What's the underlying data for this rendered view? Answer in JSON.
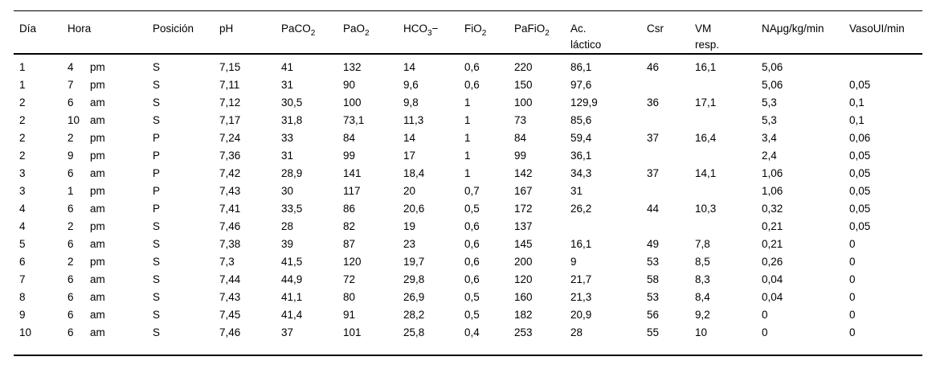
{
  "page": {
    "background_color": "#ffffff",
    "text_color": "#000000",
    "description": "Tabla de evolución gasométrica y hemodinámica"
  },
  "chart_data": {
    "type": "table",
    "columns": [
      {
        "id": "dia",
        "label": "Día"
      },
      {
        "id": "hora",
        "label": "Hora",
        "span": 2
      },
      {
        "id": "posicion",
        "label": "Posición"
      },
      {
        "id": "ph",
        "label": "pH"
      },
      {
        "id": "paco2",
        "label": "PaCO",
        "sub": "2"
      },
      {
        "id": "pao2",
        "label": "PaO",
        "sub": "2"
      },
      {
        "id": "hco3",
        "label": "HCO",
        "sub": "3",
        "after": "−"
      },
      {
        "id": "fio2",
        "label": "FiO",
        "sub": "2"
      },
      {
        "id": "pafio2",
        "label": "PaFiO",
        "sub": "2"
      },
      {
        "id": "ac_lactico",
        "label": "Ac.",
        "line2": "láctico"
      },
      {
        "id": "csr",
        "label": "Csr"
      },
      {
        "id": "vm_resp",
        "label": "VM",
        "line2": "resp."
      },
      {
        "id": "na",
        "label": "NAμg/kg/min"
      },
      {
        "id": "vaso",
        "label": "VasoUI/min"
      }
    ],
    "sub_columns": [
      "dia",
      "hora",
      "hora-ampm",
      "posicion",
      "ph",
      "paco2",
      "pao2",
      "hco3",
      "fio2",
      "pafio2",
      "ac_lactico",
      "csr",
      "vm_resp",
      "na",
      "vaso"
    ],
    "rows": [
      [
        "1",
        "4",
        "pm",
        "S",
        "7,15",
        "41",
        "132",
        "14",
        "0,6",
        "220",
        "86,1",
        "46",
        "16,1",
        "5,06",
        ""
      ],
      [
        "1",
        "7",
        "pm",
        "S",
        "7,11",
        "31",
        "90",
        "9,6",
        "0,6",
        "150",
        "97,6",
        "",
        "",
        "5,06",
        "0,05"
      ],
      [
        "2",
        "6",
        "am",
        "S",
        "7,12",
        "30,5",
        "100",
        "9,8",
        "1",
        "100",
        "129,9",
        "36",
        "17,1",
        "5,3",
        "0,1"
      ],
      [
        "2",
        "10",
        "am",
        "S",
        "7,17",
        "31,8",
        "73,1",
        "11,3",
        "1",
        "73",
        "85,6",
        "",
        "",
        "5,3",
        "0,1"
      ],
      [
        "2",
        "2",
        "pm",
        "P",
        "7,24",
        "33",
        "84",
        "14",
        "1",
        "84",
        "59,4",
        "37",
        "16,4",
        "3,4",
        "0,06"
      ],
      [
        "2",
        "9",
        "pm",
        "P",
        "7,36",
        "31",
        "99",
        "17",
        "1",
        "99",
        "36,1",
        "",
        "",
        "2,4",
        "0,05"
      ],
      [
        "3",
        "6",
        "am",
        "P",
        "7,42",
        "28,9",
        "141",
        "18,4",
        "1",
        "142",
        "34,3",
        "37",
        "14,1",
        "1,06",
        "0,05"
      ],
      [
        "3",
        "1",
        "pm",
        "P",
        "7,43",
        "30",
        "117",
        "20",
        "0,7",
        "167",
        "31",
        "",
        "",
        "1,06",
        "0,05"
      ],
      [
        "4",
        "6",
        "am",
        "P",
        "7,41",
        "33,5",
        "86",
        "20,6",
        "0,5",
        "172",
        "26,2",
        "44",
        "10,3",
        "0,32",
        "0,05"
      ],
      [
        "4",
        "2",
        "pm",
        "S",
        "7,46",
        "28",
        "82",
        "19",
        "0,6",
        "137",
        "",
        "",
        "",
        "0,21",
        "0,05"
      ],
      [
        "5",
        "6",
        "am",
        "S",
        "7,38",
        "39",
        "87",
        "23",
        "0,6",
        "145",
        "16,1",
        "49",
        "7,8",
        "0,21",
        "0"
      ],
      [
        "6",
        "2",
        "pm",
        "S",
        "7,3",
        "41,5",
        "120",
        "19,7",
        "0,6",
        "200",
        "9",
        "53",
        "8,5",
        "0,26",
        "0"
      ],
      [
        "7",
        "6",
        "am",
        "S",
        "7,44",
        "44,9",
        "72",
        "29,8",
        "0,6",
        "120",
        "21,7",
        "58",
        "8,3",
        "0,04",
        "0"
      ],
      [
        "8",
        "6",
        "am",
        "S",
        "7,43",
        "41,1",
        "80",
        "26,9",
        "0,5",
        "160",
        "21,3",
        "53",
        "8,4",
        "0,04",
        "0"
      ],
      [
        "9",
        "6",
        "am",
        "S",
        "7,45",
        "41,4",
        "91",
        "28,2",
        "0,5",
        "182",
        "20,9",
        "56",
        "9,2",
        "0",
        "0"
      ],
      [
        "10",
        "6",
        "am",
        "S",
        "7,46",
        "37",
        "101",
        "25,8",
        "0,4",
        "253",
        "28",
        "55",
        "10",
        "0",
        "0"
      ]
    ]
  }
}
